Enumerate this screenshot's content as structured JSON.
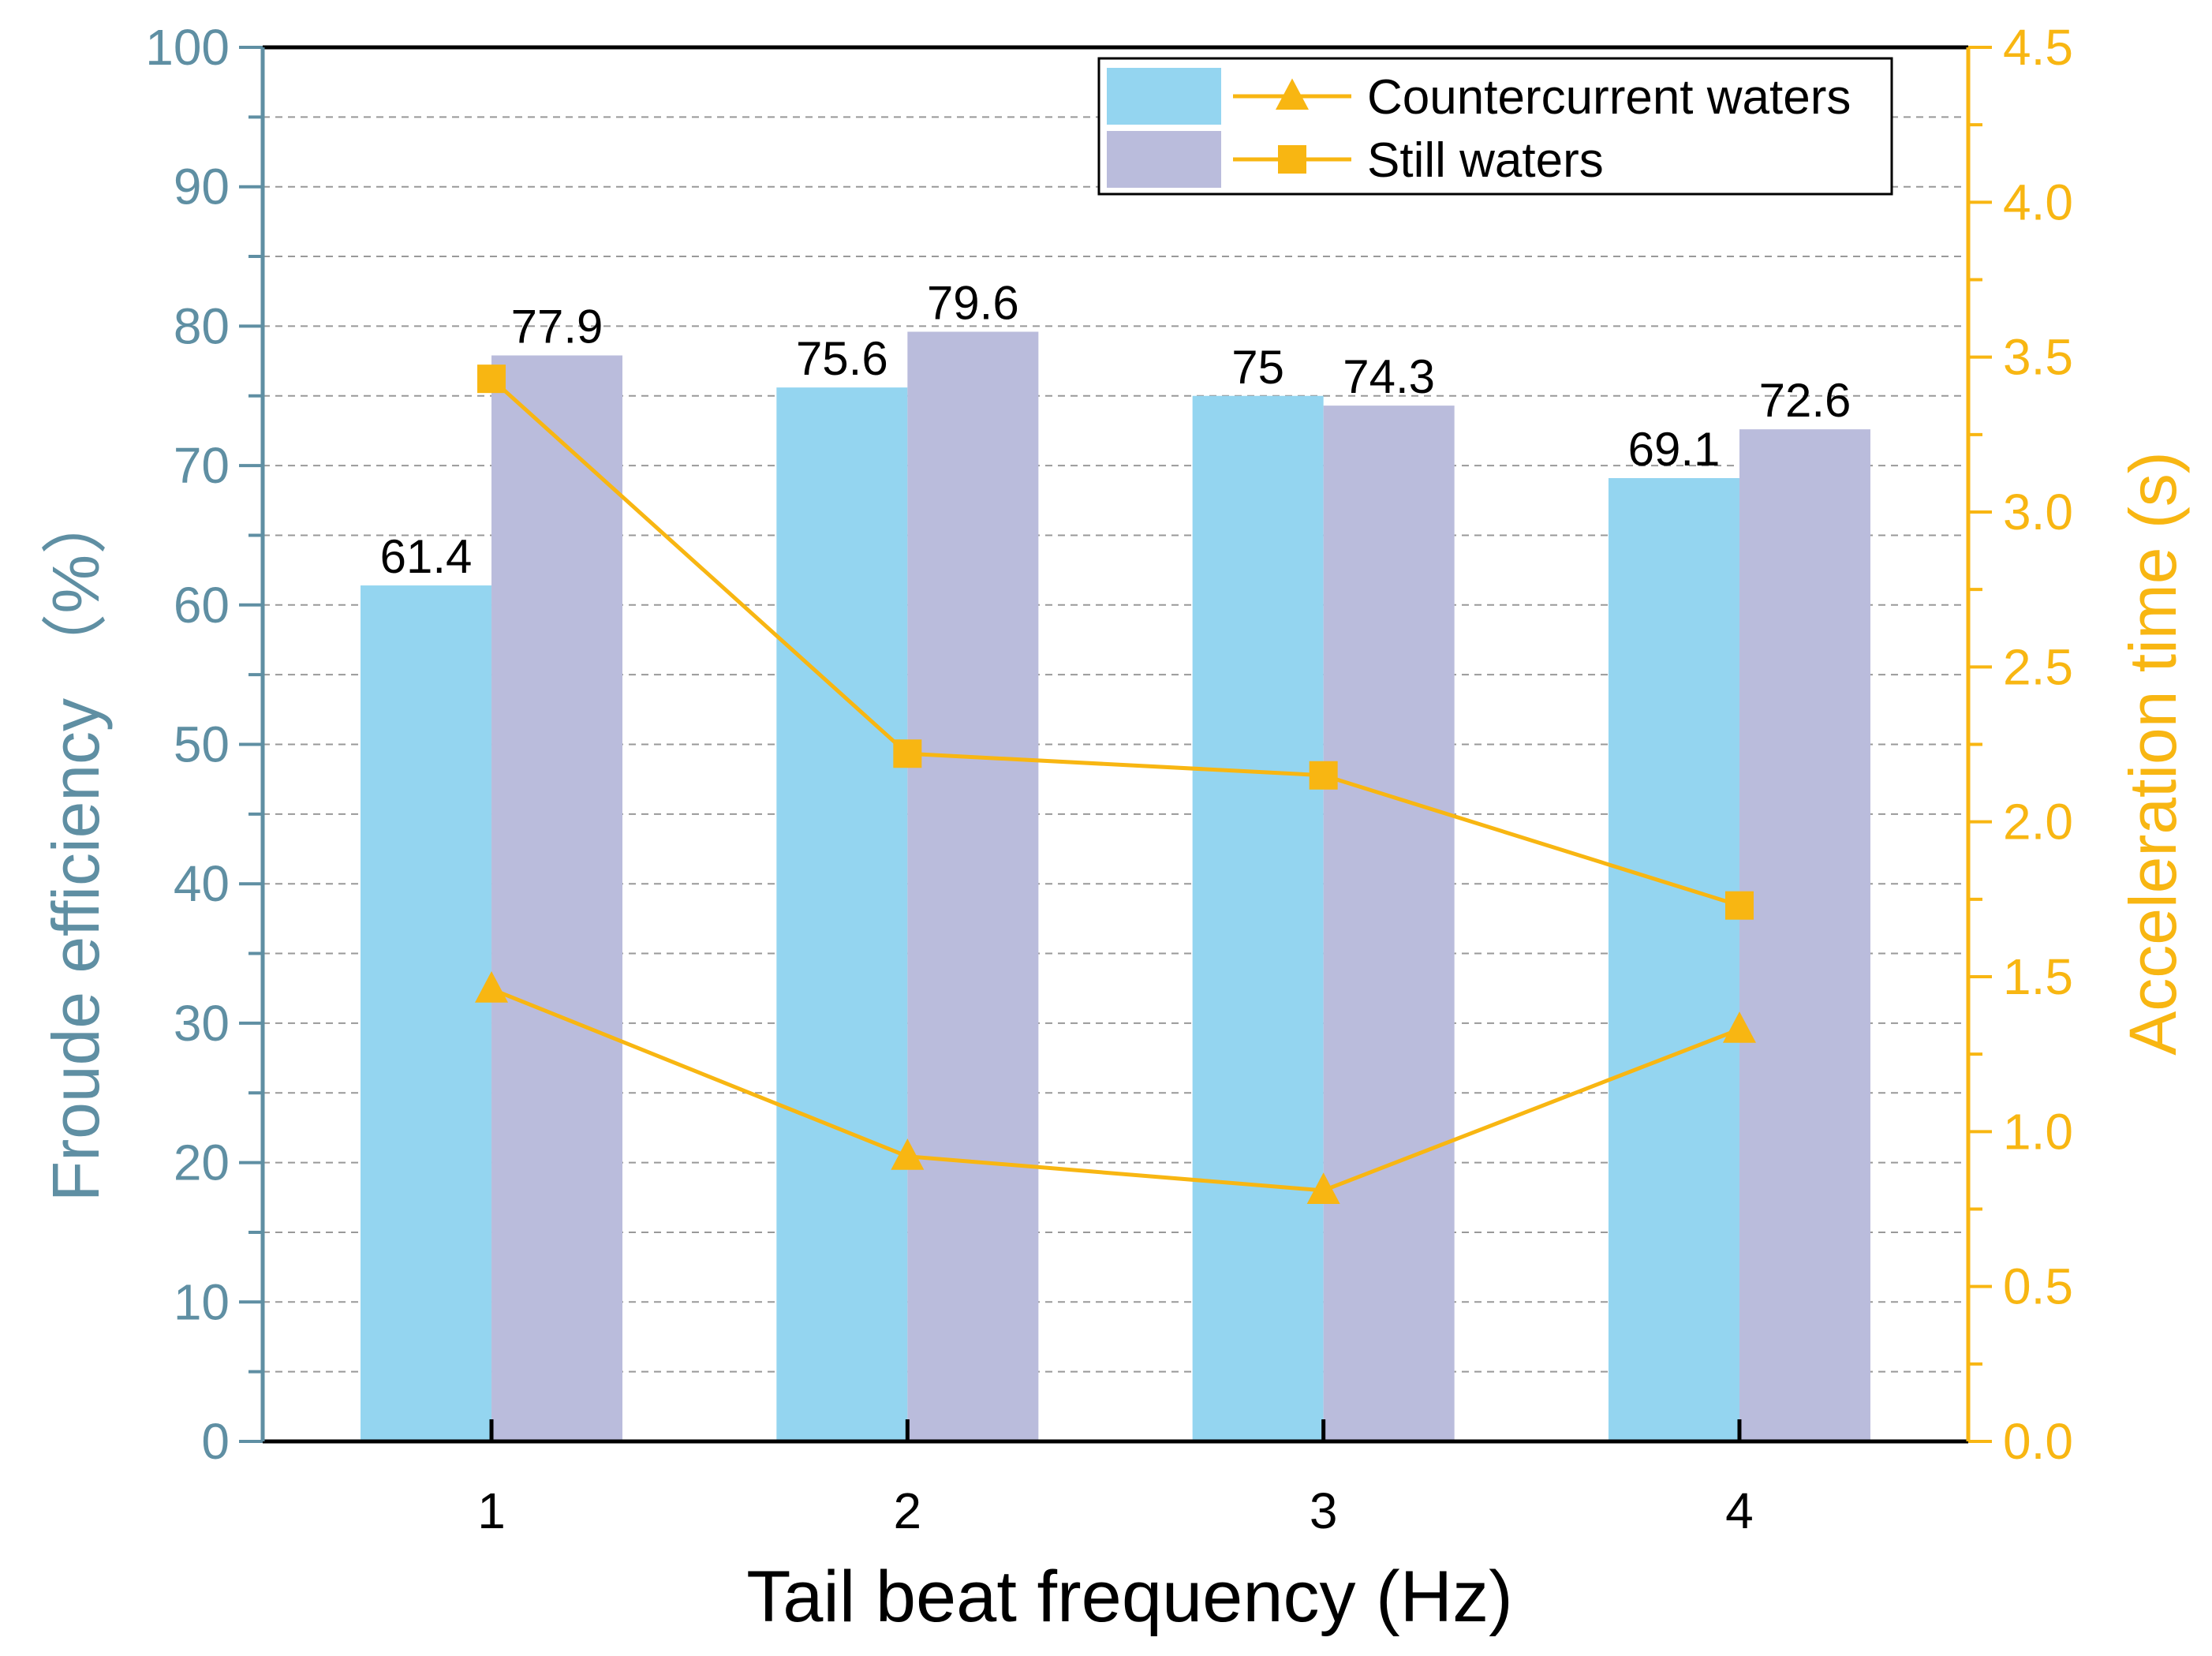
{
  "chart_data": {
    "type": "bar",
    "xlabel": "Tail beat frequency (Hz)",
    "ylabel": "Froude efficiency （%）",
    "y2label": "Acceleration time (s)",
    "categories": [
      "1",
      "2",
      "3",
      "4"
    ],
    "ylim": [
      0,
      100
    ],
    "y2lim": [
      0,
      4.5
    ],
    "yticks": [
      "0",
      "10",
      "20",
      "30",
      "40",
      "50",
      "60",
      "70",
      "80",
      "90",
      "100"
    ],
    "y2ticks": [
      "0.0",
      "0.5",
      "1.0",
      "1.5",
      "2.0",
      "2.5",
      "3.0",
      "3.5",
      "4.0",
      "4.5"
    ],
    "grid": true,
    "legend_position": "top-right",
    "series": [
      {
        "name": "Countercurrent waters",
        "kind": "bar",
        "axis": "left",
        "color": "#94D5F0",
        "values": [
          61.4,
          75.6,
          75,
          69.1
        ],
        "labels": [
          "61.4",
          "75.6",
          "75",
          "69.1"
        ]
      },
      {
        "name": "Still waters",
        "kind": "bar",
        "axis": "left",
        "color": "#BABCDC",
        "values": [
          77.9,
          79.6,
          74.3,
          72.6
        ],
        "labels": [
          "77.9",
          "79.6",
          "74.3",
          "72.6"
        ]
      },
      {
        "name": "Countercurrent waters",
        "kind": "line",
        "axis": "right",
        "marker": "triangle",
        "color": "#F8B612",
        "values": [
          1.46,
          0.92,
          0.81,
          1.33
        ]
      },
      {
        "name": "Still waters",
        "kind": "line",
        "axis": "right",
        "marker": "square",
        "color": "#F8B612",
        "values": [
          3.43,
          2.22,
          2.15,
          1.73
        ]
      }
    ],
    "colors": {
      "left_axis": "#5F8FA3",
      "right_axis": "#F8B612",
      "axis_line": "#000000",
      "grid": "#999999"
    }
  },
  "legend": {
    "items": [
      {
        "label": "Countercurrent waters",
        "bar_color": "#94D5F0",
        "marker": "triangle"
      },
      {
        "label": "Still waters",
        "bar_color": "#BABCDC",
        "marker": "square"
      }
    ]
  }
}
